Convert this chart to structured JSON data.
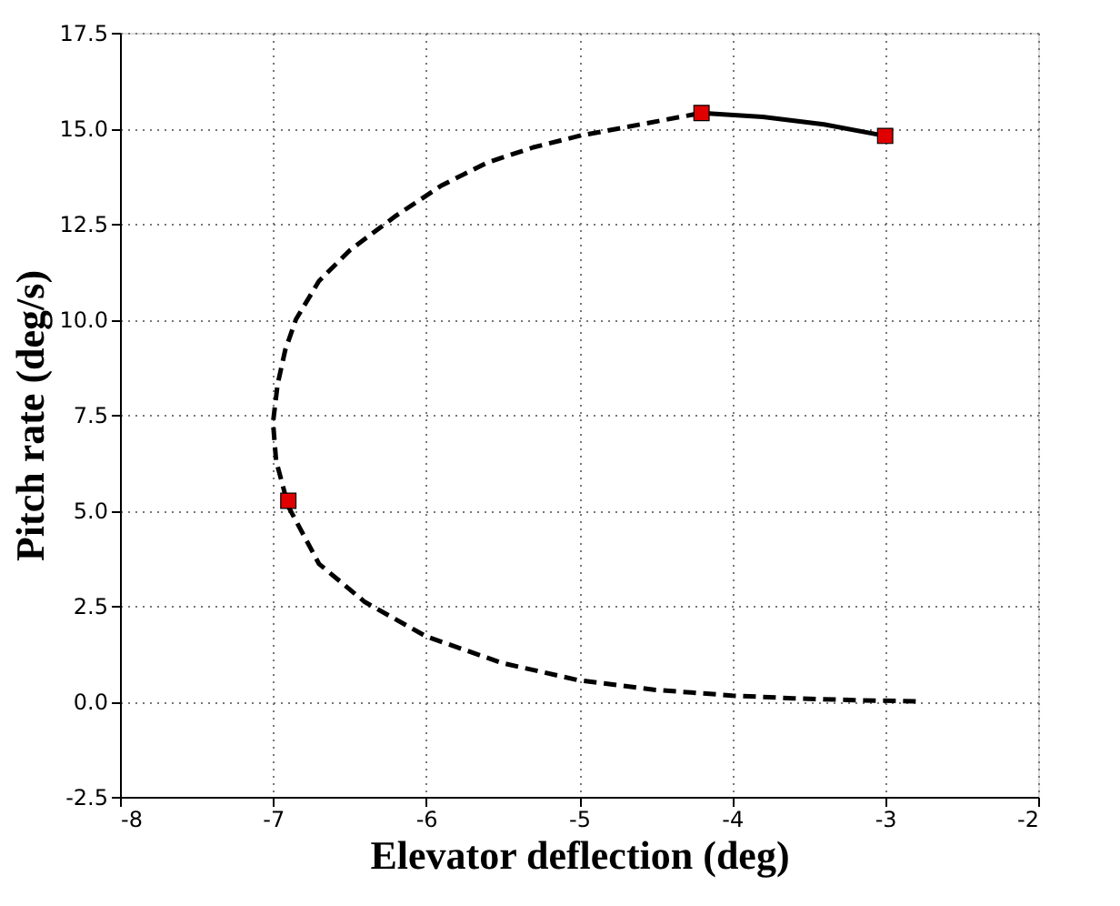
{
  "chart_data": {
    "type": "line",
    "xlabel": "Elevator deflection (deg)",
    "ylabel": "Pitch rate (deg/s)",
    "xlim": [
      -8,
      -2
    ],
    "xticks": [
      -8,
      -7,
      -6,
      -5,
      -4,
      -3,
      -2
    ],
    "ylim": [
      -2.5,
      17.5
    ],
    "yticks": [
      {
        "value": -2.5,
        "label": "-2.5"
      },
      {
        "value": 0,
        "label": "0.0"
      },
      {
        "value": 2.5,
        "label": "2.5"
      },
      {
        "value": 5,
        "label": "5.0"
      },
      {
        "value": 7.5,
        "label": "7.5"
      },
      {
        "value": 10,
        "label": "10.0"
      },
      {
        "value": 12.5,
        "label": "12.5"
      },
      {
        "value": 15,
        "label": "15.0"
      },
      {
        "value": 17.5,
        "label": "17.5"
      }
    ],
    "grid": true,
    "series": [
      {
        "line_style": "dashed",
        "marker": "none",
        "color": "#000000",
        "x": [
          -2.8,
          -3.2,
          -3.6,
          -4.0,
          -4.5,
          -5.0,
          -5.5,
          -6.0,
          -6.4,
          -6.7,
          -6.9,
          -6.98,
          -7.0,
          -6.97,
          -6.92,
          -6.85,
          -6.7,
          -6.5,
          -6.2,
          -5.9,
          -5.6,
          -5.3,
          -5.0,
          -4.6,
          -4.2
        ],
        "values": [
          0.0,
          0.03,
          0.08,
          0.15,
          0.3,
          0.55,
          1.0,
          1.7,
          2.6,
          3.6,
          5.1,
          6.3,
          7.3,
          8.3,
          9.2,
          10.0,
          11.0,
          11.8,
          12.7,
          13.5,
          14.1,
          14.5,
          14.8,
          15.1,
          15.4
        ]
      },
      {
        "line_style": "solid",
        "marker": "none",
        "color": "#000000",
        "x": [
          -4.2,
          -3.8,
          -3.4,
          -3.0
        ],
        "values": [
          15.4,
          15.3,
          15.1,
          14.8
        ]
      },
      {
        "type": "scatter",
        "marker": "square",
        "color": "#e00000",
        "x": [
          -6.9,
          -4.2,
          -3.0
        ],
        "values": [
          5.25,
          15.4,
          14.8
        ]
      }
    ]
  }
}
